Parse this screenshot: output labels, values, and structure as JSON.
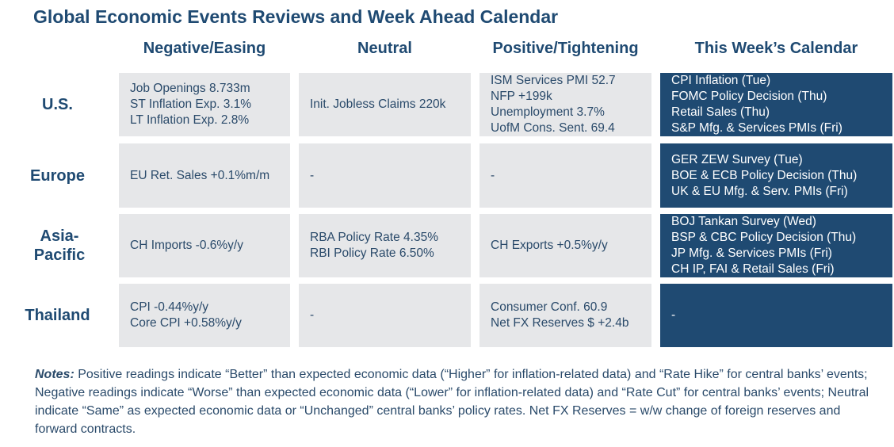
{
  "title": "Global Economic Events Reviews and Week Ahead Calendar",
  "columns": [
    "Negative/Easing",
    "Neutral",
    "Positive/Tightening",
    "This Week’s Calendar"
  ],
  "rows": [
    {
      "region": "U.S.",
      "cells": [
        [
          "Job Openings 8.733m",
          "ST Inflation Exp. 3.1%",
          "LT Inflation Exp. 2.8%"
        ],
        [
          "Init. Jobless Claims 220k"
        ],
        [
          "ISM Services PMI 52.7",
          "NFP +199k",
          "Unemployment 3.7%",
          "UofM Cons. Sent. 69.4"
        ],
        [
          "CPI Inflation (Tue)",
          "FOMC Policy Decision (Thu)",
          "Retail Sales (Thu)",
          "S&P Mfg. & Services PMIs (Fri)"
        ]
      ]
    },
    {
      "region": "Europe",
      "cells": [
        [
          "EU Ret. Sales +0.1%m/m"
        ],
        [
          "-"
        ],
        [
          "-"
        ],
        [
          "GER ZEW Survey (Tue)",
          "BOE & ECB Policy Decision (Thu)",
          "UK & EU Mfg. & Serv. PMIs (Fri)"
        ]
      ]
    },
    {
      "region": "Asia-Pacific",
      "cells": [
        [
          "CH Imports -0.6%y/y"
        ],
        [
          "RBA Policy Rate 4.35%",
          "RBI Policy Rate 6.50%"
        ],
        [
          "CH Exports +0.5%y/y"
        ],
        [
          "BOJ Tankan Survey (Wed)",
          "BSP & CBC Policy Decision (Thu)",
          "JP Mfg. & Services PMIs (Fri)",
          "CH IP, FAI & Retail Sales (Fri)"
        ]
      ]
    },
    {
      "region": "Thailand",
      "cells": [
        [
          "CPI -0.44%y/y",
          "Core CPI +0.58%y/y"
        ],
        [
          "-"
        ],
        [
          "Consumer Conf. 60.9",
          "Net FX Reserves $ +2.4b"
        ],
        [
          "-"
        ]
      ]
    }
  ],
  "notes_label": "Notes:",
  "notes_text": " Positive readings indicate “Better” than expected economic data (“Higher” for inflation-related data) and “Rate Hike” for central banks’ events; Negative readings indicate “Worse” than expected economic data (“Lower” for inflation-related data) and “Rate Cut” for central banks’ events; Neutral indicate “Same” as expected economic data or “Unchanged” central banks’ policy rates. Net FX Reserves = w/w change of foreign reserves and forward contracts."
}
